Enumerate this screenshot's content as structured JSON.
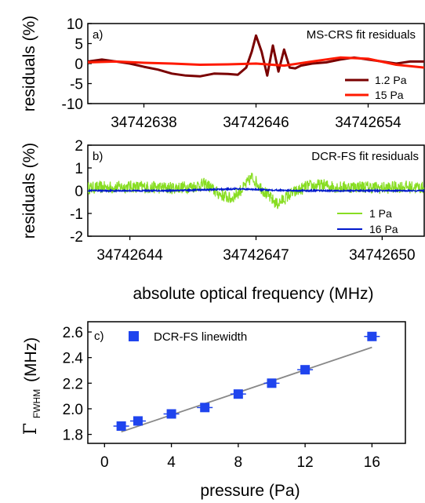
{
  "chart_data": [
    {
      "panel": "a)",
      "type": "line",
      "annotation": "MS-CRS fit residuals",
      "ylabel": "residuals (%)",
      "xlabel": "",
      "xlim": [
        34742634,
        34742658
      ],
      "ylim": [
        -10,
        10
      ],
      "yticks": [
        -10,
        -5,
        0,
        5,
        10
      ],
      "xticks": [
        34742638,
        34742646,
        34742654
      ],
      "legend_position": "bottom-right",
      "series": [
        {
          "name": "1.2 Pa",
          "color": "#7a0000",
          "x": [
            34742634,
            34742635,
            34742636,
            34742637,
            34742638,
            34742639,
            34742640,
            34742641,
            34742642,
            34742643,
            34742644,
            34742644.7,
            34742645.3,
            34742645.7,
            34742646,
            34742646.4,
            34742646.8,
            34742647.2,
            34742647.6,
            34742648,
            34742648.4,
            34742648.8,
            34742649.2,
            34742650,
            34742651,
            34742652,
            34742653,
            34742654,
            34742655,
            34742656,
            34742657,
            34742658
          ],
          "y": [
            0.5,
            1,
            0.5,
            0,
            -0.8,
            -1.5,
            -2.5,
            -3,
            -3.2,
            -2.5,
            -2.6,
            -2.8,
            -1,
            3,
            7,
            3,
            -3,
            4.5,
            -2,
            3.5,
            -1,
            -1.2,
            -0.5,
            0,
            0.3,
            1,
            1.5,
            1,
            0.5,
            0,
            0.5,
            0.5
          ]
        },
        {
          "name": "15 Pa",
          "color": "#ff1a00",
          "x": [
            34742634,
            34742636,
            34742638,
            34742640,
            34742642,
            34742644,
            34742646,
            34742648,
            34742650,
            34742652,
            34742654,
            34742656,
            34742658
          ],
          "y": [
            0.3,
            0.5,
            0.2,
            0,
            -0.3,
            -0.2,
            0,
            -0.5,
            0.5,
            1.5,
            1.2,
            -0.3,
            -1
          ]
        }
      ]
    },
    {
      "panel": "b)",
      "type": "line",
      "annotation": "DCR-FS fit residuals",
      "ylabel": "residuals (%)",
      "xlabel": "absolute optical frequency (MHz)",
      "xlim": [
        34742643,
        34742651
      ],
      "ylim": [
        -2,
        2
      ],
      "yticks": [
        -2,
        -1,
        0,
        1,
        2
      ],
      "xticks": [
        34742644,
        34742647,
        34742650
      ],
      "legend_position": "bottom-right",
      "series": [
        {
          "name": "1 Pa",
          "color": "#88dd22",
          "x": [
            34742643,
            34742643.5,
            34742644,
            34742644.5,
            34742645,
            34742645.5,
            34742645.8,
            34742646.1,
            34742646.4,
            34742646.7,
            34742646.9,
            34742647.1,
            34742647.3,
            34742647.5,
            34742647.8,
            34742648.2,
            34742648.6,
            34742649,
            34742649.5,
            34742650,
            34742650.5,
            34742651
          ],
          "y": [
            0.2,
            0.25,
            0.3,
            0.25,
            0.2,
            0.3,
            0.5,
            -0.2,
            -0.6,
            0.2,
            1.0,
            0.3,
            -0.4,
            -1.0,
            -0.3,
            0.3,
            0.4,
            0.25,
            0.3,
            0.2,
            0.3,
            0.2
          ]
        },
        {
          "name": "16 Pa",
          "color": "#0018cc",
          "x": [
            34742643,
            34742644,
            34742645,
            34742646,
            34742646.5,
            34742647,
            34742648,
            34742649,
            34742650,
            34742651
          ],
          "y": [
            0,
            0,
            0,
            0.05,
            0.08,
            0.05,
            0,
            0,
            0,
            0
          ]
        }
      ]
    },
    {
      "panel": "c)",
      "type": "scatter",
      "xlabel": "pressure (Pa)",
      "ylabel": "Γ_FWHM (MHz)",
      "ylabel_main": "Γ",
      "ylabel_sub": "FWHM",
      "ylabel_unit": "(MHz)",
      "xlim": [
        -1,
        18
      ],
      "ylim": [
        1.73,
        2.68
      ],
      "xticks": [
        0,
        4,
        8,
        12,
        16
      ],
      "yticks": [
        1.8,
        2.0,
        2.2,
        2.4,
        2.6
      ],
      "legend_position": "top-left",
      "series": [
        {
          "name": "DCR-FS linewidth",
          "color": "#1f44ee",
          "x": [
            1,
            2,
            4,
            6,
            8,
            10,
            12,
            16
          ],
          "y": [
            1.865,
            1.905,
            1.96,
            2.01,
            2.115,
            2.2,
            2.305,
            2.565
          ]
        }
      ],
      "fit_line": {
        "color": "#888888",
        "x": [
          1,
          16
        ],
        "y": [
          1.82,
          2.48
        ]
      }
    }
  ]
}
